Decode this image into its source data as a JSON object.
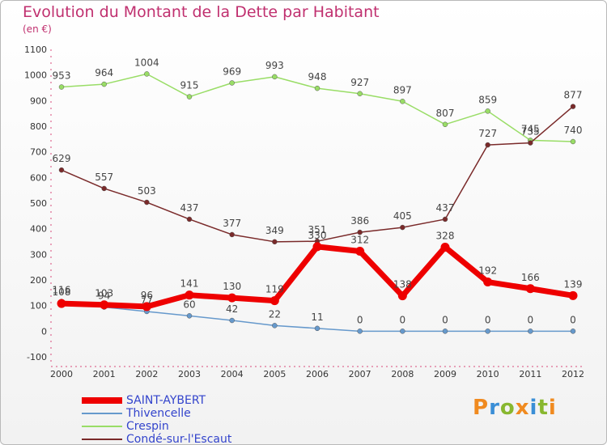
{
  "header": {
    "title": "Evolution du Montant de la Dette par Habitant",
    "unit": "(en €)"
  },
  "logo": {
    "letters": [
      "P",
      "r",
      "o",
      "x",
      "i",
      "t",
      "i"
    ],
    "colors": [
      "#f08a1f",
      "#3a8ed6",
      "#88b72f",
      "#f08a1f",
      "#3a8ed6",
      "#88b72f",
      "#f08a1f"
    ]
  },
  "chart_data": {
    "type": "line",
    "title": "Evolution du Montant de la Dette par Habitant",
    "ylabel": "(en €)",
    "xlabel": "",
    "x": [
      "2000",
      "2001",
      "2002",
      "2003",
      "2004",
      "2005",
      "2006",
      "2007",
      "2008",
      "2009",
      "2010",
      "2011",
      "2012"
    ],
    "ylim": [
      -100,
      1100
    ],
    "yticks": [
      -100,
      0,
      100,
      200,
      300,
      400,
      500,
      600,
      700,
      800,
      900,
      1000,
      1100
    ],
    "grid": false,
    "legend": "bottom-left",
    "series": [
      {
        "name": "SAINT-AYBERT",
        "color": "#ee0000",
        "labelColor": "#444444",
        "values": [
          108,
          103,
          96,
          141,
          130,
          119,
          330,
          312,
          138,
          328,
          192,
          166,
          139
        ]
      },
      {
        "name": "Thivencelle",
        "color": "#6699cc",
        "labelColor": "#444444",
        "values": [
          116,
          94,
          77,
          60,
          42,
          22,
          11,
          0,
          0,
          0,
          0,
          0,
          0
        ]
      },
      {
        "name": "Crespin",
        "color": "#99dd66",
        "labelColor": "#444444",
        "values": [
          953,
          964,
          1004,
          915,
          969,
          993,
          948,
          927,
          897,
          807,
          859,
          745,
          740
        ]
      },
      {
        "name": "Condé-sur-l'Escaut",
        "color": "#7a2a2a",
        "labelColor": "#444444",
        "values": [
          629,
          557,
          503,
          437,
          377,
          349,
          351,
          386,
          405,
          437,
          727,
          735,
          877
        ]
      }
    ]
  }
}
